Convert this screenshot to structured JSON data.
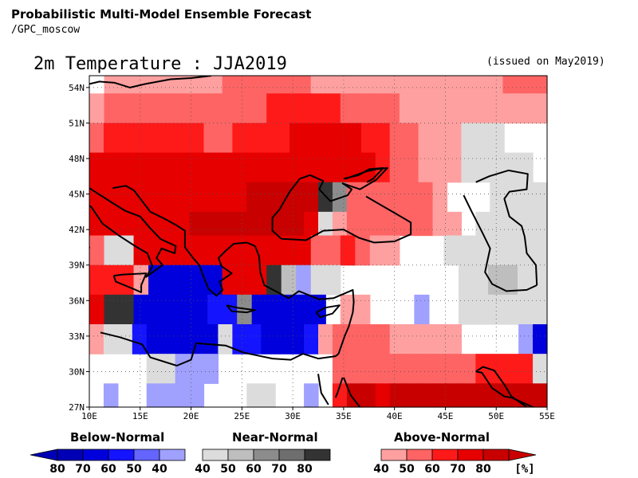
{
  "header": {
    "line1": "Probabilistic Multi-Model Ensemble Forecast",
    "line2": "/GPC_moscow"
  },
  "title": "2m Temperature : JJA2019",
  "issued": "(issued on May2019)",
  "axes": {
    "lon_min": 10,
    "lon_max": 55,
    "lat_min": 27,
    "lat_max": 55,
    "x_ticks": [
      {
        "value": 10,
        "label": "10E"
      },
      {
        "value": 15,
        "label": "15E"
      },
      {
        "value": 20,
        "label": "20E"
      },
      {
        "value": 25,
        "label": "25E"
      },
      {
        "value": 30,
        "label": "30E"
      },
      {
        "value": 35,
        "label": "35E"
      },
      {
        "value": 40,
        "label": "40E"
      },
      {
        "value": 45,
        "label": "45E"
      },
      {
        "value": 50,
        "label": "50E"
      },
      {
        "value": 55,
        "label": "55E"
      }
    ],
    "y_ticks": [
      {
        "value": 54,
        "label": "54N"
      },
      {
        "value": 51,
        "label": "51N"
      },
      {
        "value": 48,
        "label": "48N"
      },
      {
        "value": 45,
        "label": "45N"
      },
      {
        "value": 42,
        "label": "42N"
      },
      {
        "value": 39,
        "label": "39N"
      },
      {
        "value": 36,
        "label": "36N"
      },
      {
        "value": 33,
        "label": "33N"
      },
      {
        "value": 30,
        "label": "30N"
      },
      {
        "value": 27,
        "label": "27N"
      }
    ],
    "grid": true
  },
  "colors": {
    "W": "#ffffff",
    "A": "#ffa0a0",
    "B": "#ff6464",
    "C": "#ff1a1a",
    "D": "#e60000",
    "E": "#c80000",
    "G": "#dcdcdc",
    "H": "#bebebe",
    "K": "#8c8c8c",
    "L": "#6e6e6e",
    "M": "#333333",
    "N": "#a0a0ff",
    "O": "#6464ff",
    "P": "#1414ff",
    "Q": "#0000dc",
    "R": "#0000b4"
  },
  "grid_data": {
    "cell_lon": 2.5,
    "cell_lat": 2.5,
    "rows": [
      {
        "lat_top": 55.0,
        "lat_bottom": 53.5,
        "cells": "WAAAAAAAABBBBBBAAAAAAAAAAAAABBB"
      },
      {
        "lat_top": 53.5,
        "lat_bottom": 51.0,
        "cells": "ABBBBBBBBBBBCCCCCBBBBAAAAAAAAAA"
      },
      {
        "lat_top": 51.0,
        "lat_bottom": 48.5,
        "cells": "BCCCCCCCBBCCCCDDDDDCCBBAAAGGGWWW"
      },
      {
        "lat_top": 48.5,
        "lat_bottom": 46.0,
        "cells": "DDDDDDDDDDDDDDDDDDDDCBBAAAGGGGGW"
      },
      {
        "lat_top": 46.0,
        "lat_bottom": 43.5,
        "cells": "DDDDDDDDDDDEEEEEMKBBBBBBAWWWGGGG"
      },
      {
        "lat_top": 43.5,
        "lat_bottom": 41.5,
        "cells": "DDDDDDDEEEEEEEEDGABBBBBBAAWGGGGG"
      },
      {
        "lat_top": 41.5,
        "lat_bottom": 39.0,
        "cells": "BGGDDDDDDDDDDDDBBCBAAWWWGGGGGGG"
      },
      {
        "lat_top": 39.0,
        "lat_bottom": 36.5,
        "cells": "CCCAQQQQQDDDMHNGGWWWWWWWWGGHHGG"
      },
      {
        "lat_top": 36.5,
        "lat_bottom": 34.0,
        "cells": "DMMQQQQQPPKQQQQQWAAWWWNWWGGGGGG"
      },
      {
        "lat_top": 34.0,
        "lat_bottom": 31.5,
        "cells": "AGGPQQQQQGPPQQQPABBBBAAAAAWWWWNQ"
      },
      {
        "lat_top": 31.5,
        "lat_bottom": 29.0,
        "cells": "WWWWGGNNNWWWWWWWWBBBBBBBBBBCCCCG"
      },
      {
        "lat_top": 29.0,
        "lat_bottom": 27.0,
        "cells": "WNWWNNNNWWWGGWWNWCEEDEEEEEEEEEEE"
      }
    ]
  },
  "coastlines": [
    {
      "name": "gulf-of-lion-coast",
      "points": [
        [
          10,
          45.5
        ],
        [
          12,
          44.4
        ],
        [
          13.5,
          43.6
        ],
        [
          15,
          43.1
        ],
        [
          16,
          42.1
        ],
        [
          17,
          41.2
        ],
        [
          18.5,
          40.6
        ],
        [
          18.4,
          40.0
        ],
        [
          17.1,
          40.4
        ],
        [
          16.6,
          39.6
        ],
        [
          17.2,
          39.0
        ],
        [
          16.4,
          38.5
        ],
        [
          15.6,
          38.0
        ],
        [
          16.2,
          38.9
        ],
        [
          15.7,
          40.0
        ],
        [
          14.5,
          40.6
        ],
        [
          12.9,
          41.5
        ],
        [
          11.3,
          42.5
        ],
        [
          10.2,
          43.9
        ],
        [
          10,
          44.0
        ]
      ]
    },
    {
      "name": "adriatic-east-coast",
      "points": [
        [
          12.3,
          45.5
        ],
        [
          13.6,
          45.7
        ],
        [
          14.4,
          45.3
        ],
        [
          15.2,
          44.4
        ],
        [
          16.0,
          43.5
        ],
        [
          17.2,
          43.0
        ],
        [
          18.5,
          42.4
        ],
        [
          19.4,
          41.9
        ],
        [
          19.4,
          40.5
        ],
        [
          20.2,
          39.6
        ],
        [
          20.8,
          39.0
        ],
        [
          21.1,
          38.3
        ],
        [
          21.7,
          37.0
        ],
        [
          22.5,
          36.4
        ],
        [
          23.1,
          36.9
        ],
        [
          22.8,
          37.6
        ],
        [
          23.5,
          38.0
        ],
        [
          24.0,
          38.3
        ],
        [
          23.0,
          38.9
        ],
        [
          22.7,
          39.6
        ],
        [
          23.4,
          40.2
        ],
        [
          24.2,
          40.8
        ],
        [
          25.5,
          40.9
        ],
        [
          26.3,
          40.6
        ]
      ]
    },
    {
      "name": "turkey-north-coast",
      "points": [
        [
          28.9,
          41.2
        ],
        [
          29.3,
          41.2
        ],
        [
          31.3,
          41.1
        ],
        [
          33.0,
          41.9
        ],
        [
          35.0,
          42.0
        ],
        [
          36.5,
          41.3
        ],
        [
          38.0,
          40.9
        ],
        [
          40.0,
          41.0
        ],
        [
          41.6,
          41.6
        ],
        [
          41.6,
          42.6
        ],
        [
          40.0,
          43.4
        ],
        [
          38.0,
          44.4
        ],
        [
          37.2,
          44.8
        ]
      ]
    },
    {
      "name": "black-sea-west-north",
      "points": [
        [
          28.9,
          41.2
        ],
        [
          28.0,
          41.9
        ],
        [
          28.0,
          43.0
        ],
        [
          28.7,
          43.7
        ],
        [
          29.7,
          45.2
        ],
        [
          30.7,
          46.3
        ],
        [
          31.7,
          46.6
        ],
        [
          33.0,
          46.1
        ],
        [
          32.6,
          45.4
        ],
        [
          33.7,
          44.4
        ],
        [
          35.4,
          44.9
        ],
        [
          35.8,
          45.4
        ],
        [
          34.9,
          45.9
        ],
        [
          36.6,
          45.4
        ],
        [
          38.2,
          46.2
        ],
        [
          39.3,
          47.2
        ],
        [
          38.2,
          47.1
        ],
        [
          37.2,
          46.9
        ],
        [
          35.2,
          46.3
        ]
      ]
    },
    {
      "name": "turkey-south-levant",
      "points": [
        [
          26.3,
          40.6
        ],
        [
          26.7,
          39.7
        ],
        [
          26.8,
          38.4
        ],
        [
          27.2,
          37.3
        ],
        [
          28.3,
          36.8
        ],
        [
          29.6,
          36.2
        ],
        [
          30.6,
          36.8
        ],
        [
          32.6,
          36.1
        ],
        [
          34.0,
          36.2
        ],
        [
          35.9,
          36.9
        ],
        [
          36.0,
          35.9
        ],
        [
          35.9,
          35.0
        ],
        [
          35.5,
          33.8
        ],
        [
          35.1,
          33.0
        ],
        [
          34.5,
          31.5
        ],
        [
          34.2,
          31.3
        ],
        [
          32.5,
          31.1
        ],
        [
          31.0,
          31.5
        ],
        [
          29.8,
          31.0
        ],
        [
          28.0,
          31.1
        ],
        [
          25.2,
          31.6
        ],
        [
          23.4,
          32.2
        ],
        [
          20.5,
          32.4
        ],
        [
          20.0,
          31.0
        ],
        [
          18.6,
          30.5
        ],
        [
          16.0,
          31.2
        ],
        [
          15.2,
          32.3
        ],
        [
          13.0,
          32.9
        ],
        [
          11.1,
          33.3
        ]
      ]
    },
    {
      "name": "red-sea-coast",
      "points": [
        [
          32.5,
          29.8
        ],
        [
          32.8,
          28.2
        ],
        [
          33.5,
          27.2
        ]
      ]
    },
    {
      "name": "sinai-east",
      "points": [
        [
          34.9,
          29.5
        ],
        [
          34.4,
          28.2
        ],
        [
          34.2,
          27.8
        ]
      ]
    },
    {
      "name": "arabia-red-sea",
      "points": [
        [
          35.0,
          29.5
        ],
        [
          35.7,
          28.0
        ],
        [
          36.6,
          27.0
        ]
      ]
    },
    {
      "name": "caspian-west",
      "points": [
        [
          46.8,
          44.9
        ],
        [
          47.6,
          43.5
        ],
        [
          48.6,
          41.8
        ],
        [
          49.4,
          40.4
        ],
        [
          49.1,
          39.2
        ],
        [
          48.9,
          38.4
        ],
        [
          49.6,
          37.4
        ],
        [
          51.0,
          36.8
        ],
        [
          53.0,
          36.9
        ],
        [
          54.0,
          37.3
        ]
      ]
    },
    {
      "name": "caspian-east",
      "points": [
        [
          54.0,
          37.3
        ],
        [
          53.9,
          39.0
        ],
        [
          53.0,
          40.0
        ],
        [
          52.8,
          41.4
        ],
        [
          52.5,
          42.3
        ],
        [
          51.3,
          43.1
        ],
        [
          50.8,
          44.6
        ],
        [
          51.3,
          45.2
        ],
        [
          53.0,
          45.4
        ],
        [
          53.1,
          46.7
        ],
        [
          51.2,
          47.0
        ],
        [
          49.3,
          46.5
        ],
        [
          48.0,
          46.0
        ]
      ]
    },
    {
      "name": "gulf-coast",
      "points": [
        [
          48.0,
          30.0
        ],
        [
          48.6,
          29.9
        ],
        [
          49.6,
          28.6
        ],
        [
          50.8,
          27.9
        ],
        [
          51.5,
          27.8
        ],
        [
          53.6,
          27.0
        ],
        [
          55,
          26.6
        ]
      ]
    },
    {
      "name": "iran-gulf",
      "points": [
        [
          48.0,
          30.0
        ],
        [
          48.7,
          30.4
        ],
        [
          49.8,
          30.1
        ],
        [
          50.8,
          28.9
        ],
        [
          51.5,
          27.9
        ],
        [
          53.0,
          27.0
        ]
      ]
    },
    {
      "name": "crete",
      "points": [
        [
          23.5,
          35.6
        ],
        [
          24.5,
          35.4
        ],
        [
          26.3,
          35.2
        ],
        [
          25.5,
          35.0
        ],
        [
          24.0,
          35.1
        ],
        [
          23.5,
          35.6
        ]
      ]
    },
    {
      "name": "cyprus",
      "points": [
        [
          32.3,
          35.0
        ],
        [
          33.2,
          35.4
        ],
        [
          34.6,
          35.6
        ],
        [
          33.9,
          34.9
        ],
        [
          32.7,
          34.6
        ],
        [
          32.3,
          35.0
        ]
      ]
    },
    {
      "name": "sicily",
      "points": [
        [
          12.4,
          38.1
        ],
        [
          13.3,
          38.2
        ],
        [
          15.6,
          38.3
        ],
        [
          15.1,
          37.3
        ],
        [
          15.1,
          36.7
        ],
        [
          14.3,
          37.0
        ],
        [
          12.6,
          37.6
        ],
        [
          12.4,
          38.1
        ]
      ]
    },
    {
      "name": "sardinia-corsica",
      "points": [
        [
          9.6,
          41.0
        ],
        [
          10.0,
          40.5
        ],
        [
          9.6,
          39.2
        ],
        [
          10,
          39.0
        ]
      ]
    },
    {
      "name": "north-border-top",
      "points": [
        [
          10,
          54.3
        ],
        [
          11,
          54.5
        ],
        [
          12.5,
          54.4
        ],
        [
          14,
          54.0
        ],
        [
          15.5,
          54.3
        ],
        [
          18,
          54.7
        ],
        [
          20,
          54.8
        ],
        [
          22,
          55.0
        ]
      ]
    },
    {
      "name": "azov",
      "points": [
        [
          35.0,
          46.3
        ],
        [
          36.5,
          46.6
        ],
        [
          37.5,
          47.1
        ],
        [
          38.9,
          47.2
        ],
        [
          37.9,
          46.3
        ],
        [
          37.3,
          46.0
        ]
      ]
    }
  ],
  "legend": {
    "below": {
      "title": "Below-Normal",
      "colors": [
        "#0000b4",
        "#0000dc",
        "#1414ff",
        "#6464ff",
        "#a0a0ff"
      ],
      "labels": [
        "80",
        "70",
        "60",
        "50",
        "40"
      ]
    },
    "near": {
      "title": "Near-Normal",
      "colors": [
        "#dcdcdc",
        "#bebebe",
        "#8c8c8c",
        "#6e6e6e",
        "#333333"
      ],
      "labels": [
        "40",
        "50",
        "60",
        "70",
        "80"
      ]
    },
    "above": {
      "title": "Above-Normal",
      "colors": [
        "#ffa0a0",
        "#ff6464",
        "#ff1a1a",
        "#e60000",
        "#c80000"
      ],
      "labels": [
        "40",
        "50",
        "60",
        "70",
        "80"
      ],
      "unit": "[%]"
    }
  }
}
